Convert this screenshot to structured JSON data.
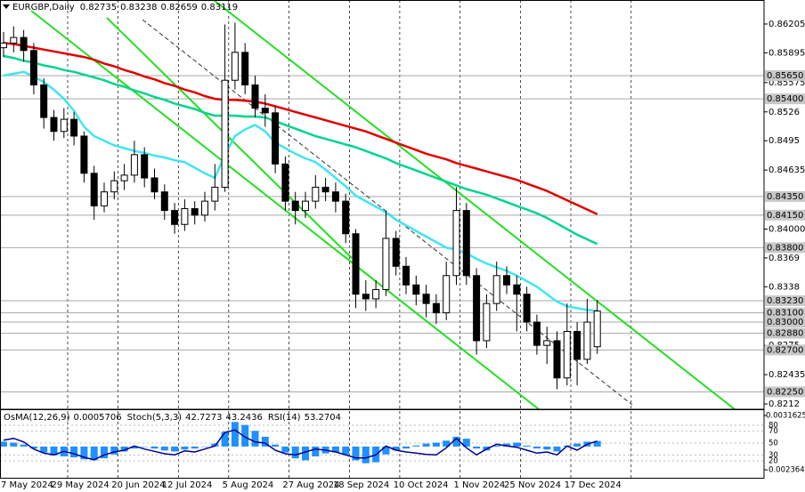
{
  "chart_data": {
    "type": "candlestick",
    "title": "EURGBP,Daily",
    "categories": [
      "7 May 2024",
      null,
      null,
      null,
      null,
      "29 May 2024",
      null,
      null,
      null,
      null,
      null,
      "20 Jun 2024",
      null,
      null,
      null,
      null,
      "12 Jul 2024",
      null,
      null,
      null,
      null,
      null,
      "5 Aug 2024",
      null,
      null,
      null,
      null,
      null,
      "27 Aug 2024",
      null,
      null,
      null,
      null,
      "18 Sep 2024",
      null,
      null,
      null,
      null,
      null,
      "10 Oct 2024",
      null,
      null,
      null,
      null,
      null,
      "1 Nov 2024",
      null,
      null,
      null,
      null,
      "25 Nov 2024",
      null,
      null,
      null,
      null,
      null,
      "17 Dec 2024",
      null,
      null,
      null
    ],
    "open": [
      0.8595,
      0.86,
      0.8606,
      0.8592,
      0.8555,
      0.852,
      0.8505,
      0.8518,
      0.85,
      0.846,
      0.8425,
      0.844,
      0.8452,
      0.8458,
      0.848,
      0.8455,
      0.844,
      0.842,
      0.8405,
      0.8422,
      0.8415,
      0.843,
      0.8445,
      0.856,
      0.859,
      0.8555,
      0.853,
      0.8525,
      0.847,
      0.843,
      0.842,
      0.843,
      0.8445,
      0.844,
      0.843,
      0.8395,
      0.833,
      0.8325,
      0.8335,
      0.839,
      0.836,
      0.834,
      0.833,
      0.832,
      0.831,
      0.835,
      0.842,
      0.835,
      0.828,
      0.832,
      0.835,
      0.834,
      0.833,
      0.83,
      0.8275,
      0.828,
      0.824,
      0.829,
      0.826,
      0.82735
    ],
    "high": [
      0.8612,
      0.8618,
      0.8614,
      0.86,
      0.8562,
      0.8528,
      0.853,
      0.8526,
      0.8505,
      0.8468,
      0.845,
      0.8462,
      0.847,
      0.8495,
      0.8488,
      0.8465,
      0.8448,
      0.8428,
      0.8432,
      0.843,
      0.844,
      0.847,
      0.862,
      0.8622,
      0.86,
      0.8565,
      0.8545,
      0.8532,
      0.8478,
      0.844,
      0.844,
      0.8458,
      0.8455,
      0.845,
      0.8438,
      0.84,
      0.8345,
      0.8345,
      0.842,
      0.8398,
      0.837,
      0.835,
      0.834,
      0.833,
      0.8365,
      0.8445,
      0.8428,
      0.8358,
      0.833,
      0.8365,
      0.836,
      0.835,
      0.8338,
      0.8308,
      0.8295,
      0.829,
      0.832,
      0.83,
      0.8325,
      0.83238
    ],
    "low": [
      0.8585,
      0.859,
      0.858,
      0.8545,
      0.8508,
      0.8495,
      0.8498,
      0.849,
      0.845,
      0.841,
      0.8418,
      0.8432,
      0.8442,
      0.845,
      0.8445,
      0.8432,
      0.841,
      0.8395,
      0.8398,
      0.8405,
      0.8408,
      0.842,
      0.844,
      0.855,
      0.8545,
      0.852,
      0.851,
      0.846,
      0.842,
      0.8405,
      0.8412,
      0.8422,
      0.843,
      0.8418,
      0.8385,
      0.8315,
      0.8312,
      0.8315,
      0.8328,
      0.835,
      0.833,
      0.8318,
      0.8305,
      0.8298,
      0.8302,
      0.834,
      0.834,
      0.8265,
      0.8272,
      0.8312,
      0.833,
      0.829,
      0.829,
      0.8265,
      0.8255,
      0.8228,
      0.8232,
      0.8232,
      0.8255,
      0.82659
    ],
    "close": [
      0.86,
      0.8606,
      0.8592,
      0.8555,
      0.852,
      0.8505,
      0.8518,
      0.85,
      0.846,
      0.8425,
      0.844,
      0.8452,
      0.8458,
      0.848,
      0.8455,
      0.844,
      0.842,
      0.8405,
      0.8422,
      0.8415,
      0.843,
      0.8445,
      0.856,
      0.859,
      0.8555,
      0.853,
      0.8525,
      0.847,
      0.843,
      0.842,
      0.843,
      0.8445,
      0.844,
      0.843,
      0.8395,
      0.833,
      0.8325,
      0.8335,
      0.839,
      0.836,
      0.834,
      0.833,
      0.832,
      0.831,
      0.835,
      0.842,
      0.835,
      0.828,
      0.832,
      0.835,
      0.834,
      0.833,
      0.83,
      0.8275,
      0.828,
      0.824,
      0.829,
      0.826,
      0.83,
      0.83119
    ],
    "candle_color": "#000000",
    "moving_averages": [
      {
        "color": "#e00000",
        "values": [
          0.86,
          0.8599,
          0.8597,
          0.8595,
          0.8593,
          0.8591,
          0.8589,
          0.8587,
          0.8585,
          0.8582,
          0.8578,
          0.8575,
          0.8571,
          0.8568,
          0.8564,
          0.8561,
          0.8557,
          0.8554,
          0.855,
          0.8547,
          0.8543,
          0.854,
          0.8539,
          0.8539,
          0.8538,
          0.8537,
          0.8535,
          0.8532,
          0.8529,
          0.8526,
          0.8523,
          0.852,
          0.8517,
          0.8514,
          0.8511,
          0.8508,
          0.8505,
          0.8501,
          0.8497,
          0.8493,
          0.8489,
          0.8485,
          0.8481,
          0.8478,
          0.8475,
          0.8471,
          0.8468,
          0.8465,
          0.8462,
          0.8459,
          0.8456,
          0.8453,
          0.8449,
          0.8445,
          0.8441,
          0.8436,
          0.8431,
          0.8426,
          0.8421,
          0.8416
        ]
      },
      {
        "color": "#00d58a",
        "values": [
          0.8586,
          0.8584,
          0.8581,
          0.8579,
          0.8576,
          0.8574,
          0.8571,
          0.8569,
          0.8566,
          0.8563,
          0.856,
          0.8556,
          0.8553,
          0.8549,
          0.8546,
          0.8542,
          0.8539,
          0.8535,
          0.8532,
          0.8529,
          0.8525,
          0.8522,
          0.8522,
          0.8522,
          0.8521,
          0.8521,
          0.852,
          0.8516,
          0.8512,
          0.8508,
          0.8504,
          0.85,
          0.8497,
          0.8494,
          0.8491,
          0.8488,
          0.8484,
          0.848,
          0.8476,
          0.8471,
          0.8467,
          0.8463,
          0.8459,
          0.8455,
          0.8451,
          0.8447,
          0.8443,
          0.844,
          0.8437,
          0.8433,
          0.8429,
          0.8425,
          0.8421,
          0.8417,
          0.8412,
          0.8406,
          0.84,
          0.8394,
          0.8389,
          0.8384
        ]
      },
      {
        "color": "#3ee6f2",
        "values": [
          0.8565,
          0.8567,
          0.8569,
          0.8564,
          0.8558,
          0.855,
          0.854,
          0.8527,
          0.851,
          0.85,
          0.8495,
          0.849,
          0.8487,
          0.8484,
          0.8482,
          0.8479,
          0.8477,
          0.8474,
          0.8472,
          0.8466,
          0.846,
          0.8455,
          0.848,
          0.85,
          0.8507,
          0.8512,
          0.8505,
          0.8493,
          0.8487,
          0.8481,
          0.8476,
          0.8472,
          0.8464,
          0.8455,
          0.8446,
          0.8436,
          0.843,
          0.8424,
          0.8418,
          0.841,
          0.8404,
          0.8398,
          0.8392,
          0.8386,
          0.838,
          0.8378,
          0.8374,
          0.8368,
          0.8363,
          0.8359,
          0.8355,
          0.835,
          0.8344,
          0.8338,
          0.833,
          0.8322,
          0.8317,
          0.8315,
          0.8313,
          0.8312
        ]
      }
    ],
    "levels": [
      {
        "value": 0.8565,
        "label": "0.85650"
      },
      {
        "value": 0.854,
        "label": "0.85400"
      },
      {
        "value": 0.8435,
        "label": "0.84350"
      },
      {
        "value": 0.8415,
        "label": "0.84150"
      },
      {
        "value": 0.838,
        "label": "0.83800"
      },
      {
        "value": 0.8323,
        "label": "0.83230"
      },
      {
        "value": 0.831,
        "label": "0.83100"
      },
      {
        "value": 0.83,
        "label": "0.83000"
      },
      {
        "value": 0.8288,
        "label": "0.82880"
      },
      {
        "value": 0.827,
        "label": "0.82700"
      },
      {
        "value": 0.8225,
        "label": "0.82250"
      }
    ],
    "level_color": "#a9a9a9",
    "ylim": [
      0.82063,
      0.86463
    ],
    "yticks": [
      0.86205,
      0.85895,
      0.85575,
      0.8526,
      0.8495,
      0.84635,
      {
        "value": 0.84,
        "label": "0.84000"
      },
      0.8369,
      0.8338,
      0.8275,
      0.82435,
      0.8212
    ],
    "indicators": {
      "osma": {
        "name": "OsMA(12,26,9)",
        "color": "#1e90ff",
        "ylim": [
          -0.00318,
          0.00371
        ],
        "yticks": [
          -0.002364,
          0.0031625
        ],
        "values": [
          0.0005,
          0.0004,
          0.0002,
          -0.0002,
          -0.0006,
          -0.0009,
          -0.001,
          -0.0011,
          -0.0013,
          -0.0014,
          -0.0012,
          -0.0008,
          -0.0005,
          -0.0002,
          0.0,
          -0.0002,
          -0.0004,
          -0.0005,
          -0.0003,
          -0.0002,
          0.0,
          0.0003,
          0.0015,
          0.0025,
          0.0022,
          0.0016,
          0.001,
          0.0002,
          -0.0006,
          -0.0012,
          -0.0014,
          -0.001,
          -0.0007,
          -0.0006,
          -0.0008,
          -0.0014,
          -0.0017,
          -0.0016,
          -0.0008,
          -0.0004,
          -0.0002,
          0.0001,
          0.0003,
          0.0004,
          0.0006,
          0.001,
          0.0008,
          -0.0002,
          -0.0004,
          0.0001,
          0.0003,
          0.0004,
          0.0001,
          -0.0002,
          -0.0003,
          -0.0005,
          0.0001,
          0.0003,
          0.0005,
          0.0005706
        ]
      },
      "stoch": {
        "name": "Stoch(5,3,3)",
        "values": [
          42.7273,
          43.2436
        ]
      },
      "rsi": {
        "name": "RSI(14)",
        "color": "#00008b",
        "ylim": [
          -8.5,
          105.5
        ],
        "yticks": [
          20,
          30,
          50,
          70,
          80
        ],
        "values": [
          55,
          58,
          52,
          40,
          33,
          30,
          36,
          32,
          26,
          22,
          30,
          35,
          38,
          45,
          40,
          36,
          32,
          30,
          37,
          35,
          40,
          45,
          68,
          72,
          60,
          52,
          50,
          38,
          32,
          30,
          35,
          40,
          38,
          35,
          30,
          25,
          25,
          30,
          45,
          38,
          35,
          33,
          31,
          30,
          42,
          58,
          42,
          30,
          40,
          48,
          45,
          43,
          38,
          33,
          35,
          30,
          45,
          38,
          48,
          53.2704
        ]
      }
    }
  }
}
